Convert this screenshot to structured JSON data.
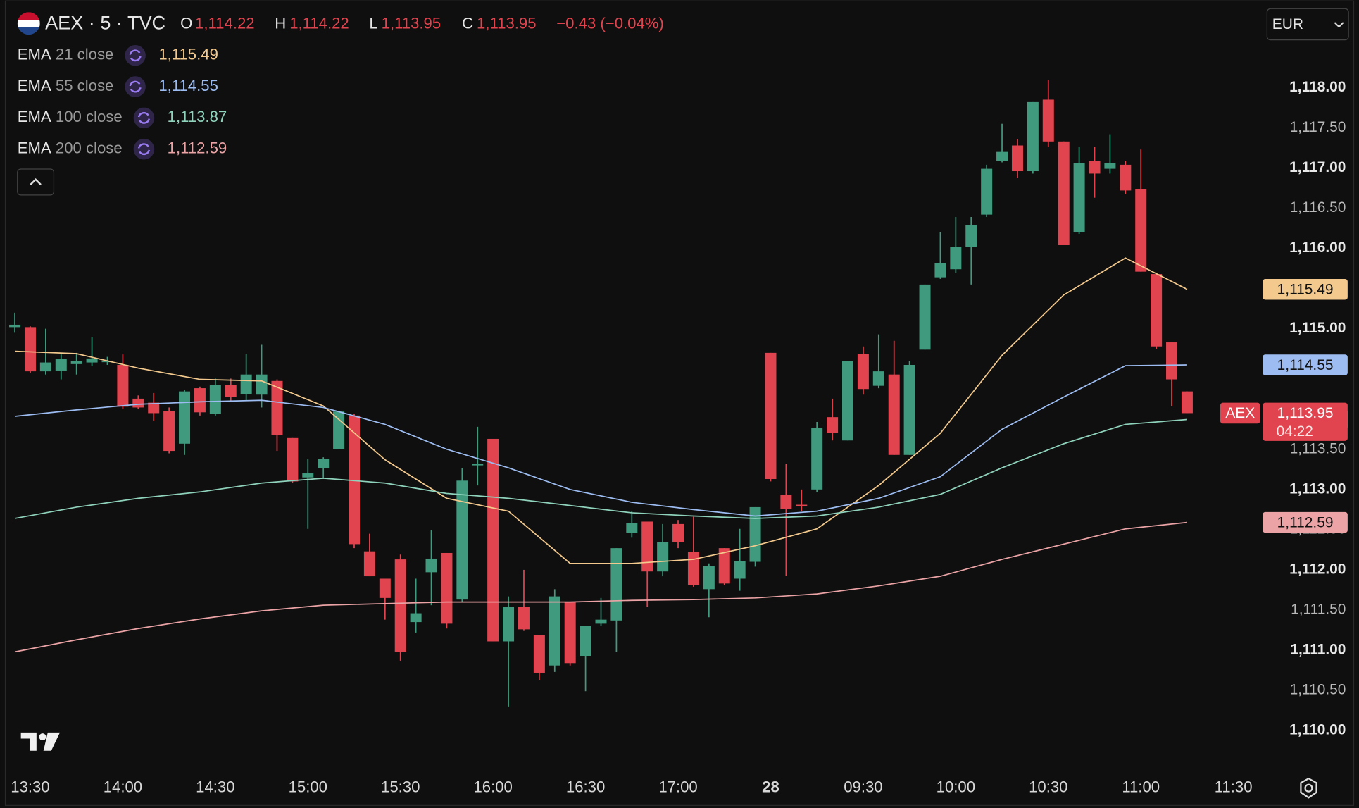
{
  "header": {
    "symbol": "AEX · 5 · TVC",
    "open_label": "O",
    "open": "1,114.22",
    "high_label": "H",
    "high": "1,114.22",
    "low_label": "L",
    "low": "1,113.95",
    "close_label": "C",
    "close": "1,113.95",
    "change": "−0.43 (−0.04%)",
    "currency": "EUR",
    "symbol_tag": "AEX",
    "countdown": "04:22"
  },
  "chart_data": {
    "type": "candlestick",
    "up_color": "#3f9a7e",
    "down_color": "#e2444f",
    "grid": false,
    "categories": [
      null,
      "13:30",
      null,
      null,
      null,
      null,
      null,
      "14:00",
      null,
      null,
      null,
      null,
      null,
      "14:30",
      null,
      null,
      null,
      null,
      null,
      "15:00",
      null,
      null,
      null,
      null,
      null,
      "15:30",
      null,
      null,
      null,
      null,
      null,
      "16:00",
      null,
      null,
      null,
      null,
      null,
      "16:30",
      null,
      null,
      null,
      null,
      null,
      "17:00",
      null,
      null,
      null,
      null,
      null,
      "28",
      null,
      null,
      null,
      null,
      null,
      "09:30",
      null,
      null,
      null,
      null,
      null,
      "10:00",
      null,
      null,
      null,
      null,
      null,
      "10:30",
      null,
      null,
      null,
      null,
      null,
      "11:00",
      null,
      null,
      null,
      null,
      null,
      "11:30"
    ],
    "open": [
      1115.02,
      1115.02,
      1114.47,
      1114.48,
      1114.56,
      1114.58,
      1114.6,
      1114.55,
      1114.13,
      1114.08,
      1113.98,
      1113.57,
      1114.26,
      1113.94,
      1114.3,
      1114.19,
      1114.18,
      1114.35,
      1113.64,
      1113.15,
      1113.27,
      1113.5,
      1113.92,
      1112.23,
      1111.89,
      1112.13,
      1111.35,
      1111.97,
      1112.21,
      1111.63,
      1113.3,
      1113.63,
      1111.11,
      1111.54,
      1111.19,
      1110.81,
      1111.6,
      1110.93,
      1111.33,
      1111.37,
      1112.46,
      1112.6,
      1111.98,
      1112.57,
      1112.22,
      1111.76,
      1112.27,
      1111.89,
      1112.1,
      1114.7,
      1112.93,
      1112.81,
      1113.0,
      1113.9,
      1113.61,
      1114.69,
      1114.29,
      1114.43,
      1113.43,
      1114.74,
      1115.64,
      1115.74,
      1116.02,
      1116.42,
      1117.09,
      1117.28,
      1116.96,
      1117.85,
      1117.33,
      1116.2,
      1117.09,
      1116.99,
      1117.04,
      1116.74,
      1115.68,
      1114.83,
      1114.22,
      null,
      null,
      null
    ],
    "high": [
      1115.2,
      1115.03,
      1115.0,
      1114.68,
      1114.7,
      1114.9,
      1114.65,
      1114.68,
      1114.17,
      1114.2,
      1114.02,
      1114.24,
      1114.28,
      1114.38,
      1114.38,
      1114.69,
      1114.8,
      1114.37,
      1113.64,
      1113.38,
      1113.4,
      1113.97,
      1113.94,
      1112.45,
      1111.89,
      1112.19,
      1111.89,
      1112.49,
      1112.21,
      1113.27,
      1113.78,
      1113.63,
      1111.67,
      1112.0,
      1111.19,
      1111.76,
      1111.6,
      1111.3,
      1111.65,
      1112.27,
      1112.73,
      1112.6,
      1112.57,
      1112.62,
      1112.66,
      1112.08,
      1112.27,
      1112.51,
      1112.78,
      1114.7,
      1113.32,
      1113.0,
      1113.84,
      1114.13,
      1114.6,
      1114.78,
      1114.93,
      1114.85,
      1114.6,
      1115.55,
      1116.2,
      1116.39,
      1116.39,
      1117.04,
      1117.55,
      1117.36,
      1117.82,
      1118.1,
      1117.33,
      1117.26,
      1117.26,
      1117.42,
      1117.09,
      1117.23,
      1115.68,
      1114.83,
      1114.22,
      null,
      null,
      null
    ],
    "low": [
      1114.95,
      1114.45,
      1114.43,
      1114.37,
      1114.43,
      1114.54,
      1114.55,
      1114.0,
      1114.0,
      1113.85,
      1113.45,
      1113.43,
      1113.92,
      1113.92,
      1114.1,
      1114.1,
      1114.02,
      1113.48,
      1113.08,
      1112.51,
      1113.14,
      1113.5,
      1112.27,
      1111.92,
      1111.38,
      1110.87,
      1111.22,
      1111.56,
      1111.27,
      1111.6,
      1113.05,
      1111.11,
      1110.3,
      1111.24,
      1110.63,
      1110.73,
      1110.81,
      1110.49,
      1111.3,
      1110.98,
      1112.4,
      1111.54,
      1111.92,
      1112.27,
      1111.79,
      1111.41,
      1111.81,
      1111.74,
      1112.04,
      1113.1,
      1111.92,
      1112.73,
      1112.97,
      1113.61,
      1113.61,
      1114.18,
      1114.26,
      1113.43,
      1113.43,
      1114.74,
      1115.62,
      1115.69,
      1115.55,
      1116.39,
      1117.07,
      1116.88,
      1116.93,
      1117.26,
      1116.04,
      1116.18,
      1116.63,
      1116.93,
      1116.68,
      1115.71,
      1114.75,
      1114.04,
      1113.95,
      null,
      null,
      null
    ],
    "close": [
      1115.05,
      1114.47,
      1114.58,
      1114.62,
      1114.6,
      1114.63,
      1114.6,
      1114.03,
      1114.02,
      1113.95,
      1113.48,
      1114.22,
      1113.96,
      1114.3,
      1114.15,
      1114.43,
      1114.43,
      1113.68,
      1113.1,
      1113.2,
      1113.38,
      1113.97,
      1112.32,
      1111.92,
      1111.65,
      1110.98,
      1111.46,
      1112.14,
      1111.33,
      1113.11,
      1113.32,
      1111.11,
      1111.54,
      1111.26,
      1110.72,
      1111.67,
      1110.84,
      1111.3,
      1111.38,
      1112.27,
      1112.58,
      1111.98,
      1112.35,
      1112.35,
      1111.81,
      1112.05,
      1111.83,
      1112.11,
      1112.78,
      1113.13,
      1112.76,
      1112.8,
      1113.77,
      1113.7,
      1114.6,
      1114.25,
      1114.47,
      1113.43,
      1114.55,
      1115.55,
      1115.82,
      1116.02,
      1116.29,
      1116.99,
      1117.2,
      1116.96,
      1117.82,
      1117.33,
      1116.04,
      1117.06,
      1116.93,
      1117.06,
      1116.72,
      1115.71,
      1114.78,
      1114.37,
      1113.95,
      null,
      null,
      null
    ],
    "ylim": [
      1109.49,
      1119.09
    ],
    "yticks": [
      {
        "value": 1110,
        "label": "1,110.00"
      },
      {
        "value": 1110.5,
        "label": "1,110.50"
      },
      {
        "value": 1111,
        "label": "1,111.00"
      },
      {
        "value": 1111.5,
        "label": "1,111.50"
      },
      {
        "value": 1112,
        "label": "1,112.00"
      },
      {
        "value": 1112.5,
        "label": "1,112.50"
      },
      {
        "value": 1113,
        "label": "1,113.00"
      },
      {
        "value": 1113.5,
        "label": "1,113.50"
      },
      {
        "value": 1114,
        "label": "1,114.00"
      },
      {
        "value": 1114.5,
        "label": "1,114.50"
      },
      {
        "value": 1115,
        "label": "1,115.00"
      },
      {
        "value": 1115.5,
        "label": "1,115.50"
      },
      {
        "value": 1116,
        "label": "1,116.00"
      },
      {
        "value": 1116.5,
        "label": "1,116.50"
      },
      {
        "value": 1117,
        "label": "1,117.00"
      },
      {
        "value": 1117.5,
        "label": "1,117.50"
      },
      {
        "value": 1118,
        "label": "1,118.00"
      }
    ],
    "overlays": [
      {
        "name": "EMA",
        "params": "21 close",
        "color": "#f3c98d",
        "last_label": "1,115.49",
        "x": [
          0,
          4,
          8,
          12,
          16,
          20,
          24,
          28,
          32,
          36,
          40,
          44,
          48,
          52,
          56,
          60,
          64,
          68,
          72,
          76
        ],
        "values": [
          1114.72,
          1114.69,
          1114.51,
          1114.37,
          1114.35,
          1114.04,
          1113.37,
          1112.89,
          1112.73,
          1112.08,
          1112.08,
          1112.13,
          1112.3,
          1112.51,
          1113.05,
          1113.7,
          1114.67,
          1115.42,
          1115.88,
          1115.49
        ]
      },
      {
        "name": "EMA",
        "params": "55 close",
        "color": "#9dbdf2",
        "last_label": "1,114.55",
        "x": [
          0,
          4,
          8,
          12,
          16,
          20,
          24,
          28,
          32,
          36,
          40,
          44,
          48,
          52,
          56,
          60,
          64,
          68,
          72,
          76
        ],
        "values": [
          1113.91,
          1113.99,
          1114.06,
          1114.09,
          1114.11,
          1114.02,
          1113.81,
          1113.5,
          1113.27,
          1113.0,
          1112.84,
          1112.75,
          1112.67,
          1112.73,
          1112.89,
          1113.16,
          1113.75,
          1114.15,
          1114.54,
          1114.55
        ]
      },
      {
        "name": "EMA",
        "params": "100 close",
        "color": "#8fd3bd",
        "last_label": "1,113.87",
        "x": [
          0,
          4,
          8,
          12,
          16,
          20,
          24,
          28,
          32,
          36,
          40,
          44,
          48,
          52,
          56,
          60,
          64,
          68,
          72,
          76
        ],
        "values": [
          1112.64,
          1112.78,
          1112.89,
          1112.97,
          1113.08,
          1113.14,
          1113.08,
          1112.95,
          1112.89,
          1112.8,
          1112.71,
          1112.67,
          1112.64,
          1112.67,
          1112.78,
          1112.94,
          1113.27,
          1113.57,
          1113.81,
          1113.87
        ]
      },
      {
        "name": "EMA",
        "params": "200 close",
        "color": "#eba3a5",
        "last_label": "1,112.59",
        "x": [
          0,
          4,
          8,
          12,
          16,
          20,
          24,
          28,
          32,
          36,
          40,
          44,
          48,
          52,
          56,
          60,
          64,
          68,
          72,
          76
        ],
        "values": [
          1110.98,
          1111.13,
          1111.27,
          1111.39,
          1111.49,
          1111.56,
          1111.58,
          1111.6,
          1111.6,
          1111.6,
          1111.62,
          1111.63,
          1111.65,
          1111.7,
          1111.8,
          1111.92,
          1112.13,
          1112.32,
          1112.51,
          1112.59
        ]
      }
    ]
  }
}
